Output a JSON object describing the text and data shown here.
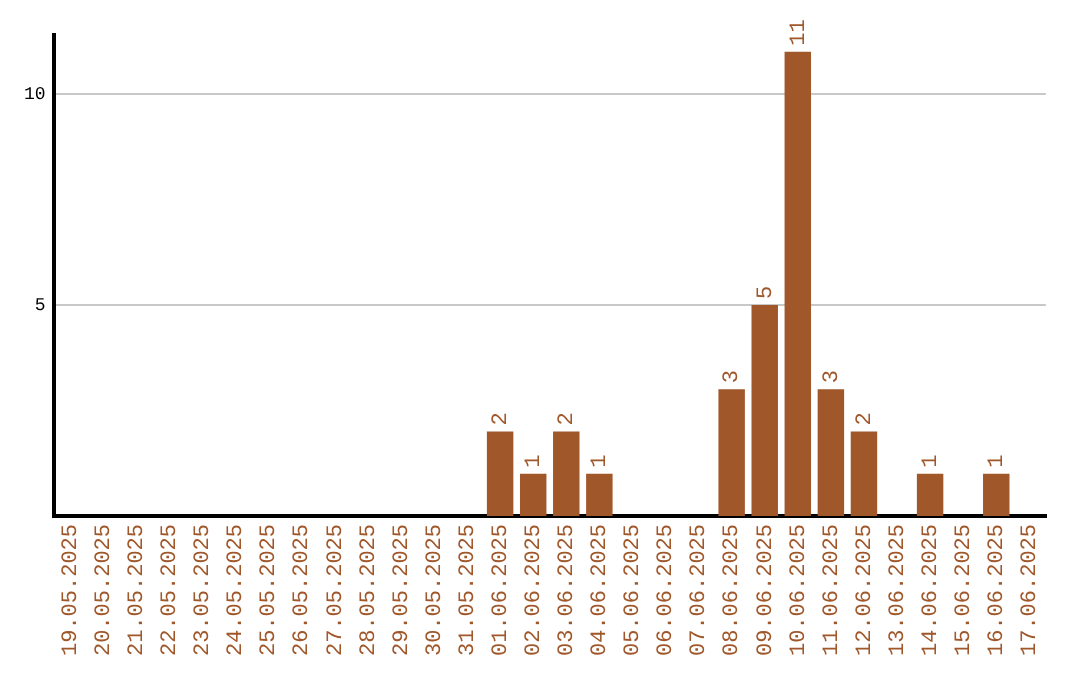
{
  "chart_data": {
    "type": "bar",
    "categories": [
      "19.05.2025",
      "20.05.2025",
      "21.05.2025",
      "22.05.2025",
      "23.05.2025",
      "24.05.2025",
      "25.05.2025",
      "26.05.2025",
      "27.05.2025",
      "28.05.2025",
      "29.05.2025",
      "30.05.2025",
      "31.05.2025",
      "01.06.2025",
      "02.06.2025",
      "03.06.2025",
      "04.06.2025",
      "05.06.2025",
      "06.06.2025",
      "07.06.2025",
      "08.06.2025",
      "09.06.2025",
      "10.06.2025",
      "11.06.2025",
      "12.06.2025",
      "13.06.2025",
      "14.06.2025",
      "15.06.2025",
      "16.06.2025",
      "17.06.2025"
    ],
    "values": [
      0,
      0,
      0,
      0,
      0,
      0,
      0,
      0,
      0,
      0,
      0,
      0,
      0,
      2,
      1,
      2,
      1,
      0,
      0,
      0,
      3,
      5,
      11,
      3,
      2,
      0,
      1,
      0,
      1,
      0
    ],
    "value_labels": [
      null,
      null,
      null,
      null,
      null,
      null,
      null,
      null,
      null,
      null,
      null,
      null,
      null,
      "2",
      "1",
      "2",
      "1",
      null,
      null,
      null,
      "3",
      "5",
      "11",
      "3",
      "2",
      null,
      "1",
      null,
      "1",
      null
    ],
    "color": "#a0572a",
    "ylim": [
      0,
      11.4
    ],
    "yticks": [
      5,
      10
    ],
    "grid": "y"
  }
}
